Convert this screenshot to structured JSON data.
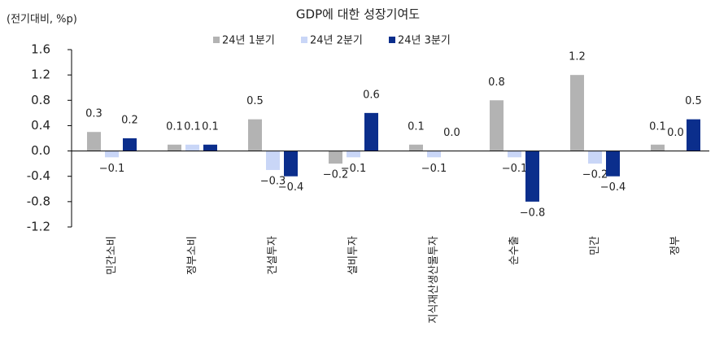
{
  "chart_data": {
    "type": "bar",
    "title": "GDP에 대한 성장기여도",
    "y_axis_label": "(전기대비, %p)",
    "categories": [
      "민간소비",
      "정부소비",
      "건설투자",
      "설비투자",
      "지식재산생산물투자",
      "순수출",
      "민간",
      "정부"
    ],
    "series": [
      {
        "name": "24년 1분기",
        "color": "#b3b3b3",
        "values": [
          0.3,
          0.1,
          0.5,
          -0.2,
          0.1,
          0.8,
          1.2,
          0.1
        ],
        "value_labels": [
          "0.3",
          "0.1",
          "0.5",
          "−0.2",
          "0.1",
          "0.8",
          "1.2",
          "0.1"
        ]
      },
      {
        "name": "24년 2분기",
        "color": "#c9d6f7",
        "values": [
          -0.1,
          0.1,
          -0.3,
          -0.1,
          -0.1,
          -0.1,
          -0.2,
          0.0
        ],
        "value_labels": [
          "−0.1",
          "0.1",
          "−0.3",
          "−0.1",
          "−0.1",
          "−0.1",
          "−0.2",
          "0.0"
        ]
      },
      {
        "name": "24년 3분기",
        "color": "#0b2e8c",
        "values": [
          0.2,
          0.1,
          -0.4,
          0.6,
          0.0,
          -0.8,
          -0.4,
          0.5
        ],
        "value_labels": [
          "0.2",
          "0.1",
          "−0.4",
          "0.6",
          "0.0",
          "−0.8",
          "−0.4",
          "0.5"
        ]
      }
    ],
    "ylim": [
      -1.2,
      1.6
    ],
    "yticks": [
      1.6,
      1.2,
      0.8,
      0.4,
      {
        "value": 0,
        "label": "0.0"
      },
      -0.4,
      -0.8,
      -1.2
    ],
    "legend": "top"
  }
}
